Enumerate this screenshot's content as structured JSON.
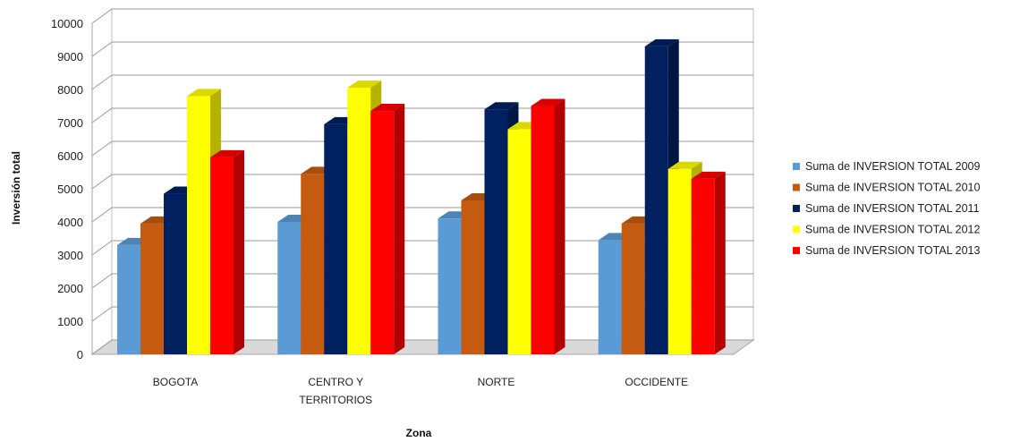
{
  "chart_data": {
    "type": "bar",
    "variant": "3d-clustered-column",
    "title": "",
    "xlabel": "Zona",
    "ylabel": "Inversión total",
    "ylim": [
      0,
      10000
    ],
    "y_ticks": [
      "0",
      "1000",
      "2000",
      "3000",
      "4000",
      "5000",
      "6000",
      "7000",
      "8000",
      "9000",
      "10000"
    ],
    "categories": [
      [
        "BOGOTA"
      ],
      [
        "CENTRO Y",
        "TERRITORIOS"
      ],
      [
        "NORTE"
      ],
      [
        "OCCIDENTE"
      ]
    ],
    "series": [
      {
        "name": "Suma de INVERSION  TOTAL 2009",
        "color": "#5B9BD5",
        "values": [
          3300,
          4000,
          4100,
          3450
        ]
      },
      {
        "name": "Suma de INVERSION  TOTAL 2010",
        "color": "#C55A11",
        "values": [
          3950,
          5450,
          4650,
          3950
        ]
      },
      {
        "name": "Suma de INVERSION  TOTAL 2011",
        "color": "#002060",
        "values": [
          4850,
          6950,
          7400,
          9300
        ]
      },
      {
        "name": "Suma de INVERSION  TOTAL 2012",
        "color": "#FFFF00",
        "values": [
          7800,
          8050,
          6800,
          5600
        ]
      },
      {
        "name": "Suma de INVERSION  TOTAL 2013",
        "color": "#FF0000",
        "values": [
          5950,
          7350,
          7500,
          5300
        ]
      }
    ],
    "grid": true,
    "legend_position": "right"
  }
}
